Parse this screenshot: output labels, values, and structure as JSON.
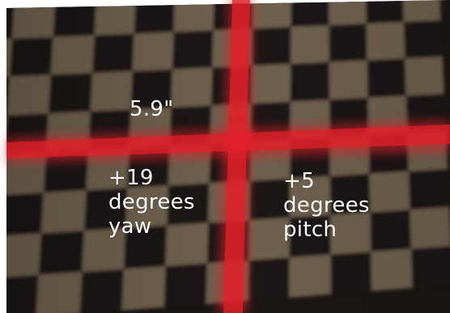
{
  "photo": {
    "subject": "checkerboard-wall",
    "colors": {
      "light_square": "#6f6250",
      "dark_square": "#1c1713",
      "laser_red": "#e0202a",
      "background": "#ffffff"
    }
  },
  "annotations": {
    "measurement": "5.9\"",
    "yaw": {
      "value": "+19",
      "unit": "degrees",
      "axis": "yaw"
    },
    "pitch": {
      "value": "+5",
      "unit": "degrees",
      "axis": "pitch"
    }
  }
}
